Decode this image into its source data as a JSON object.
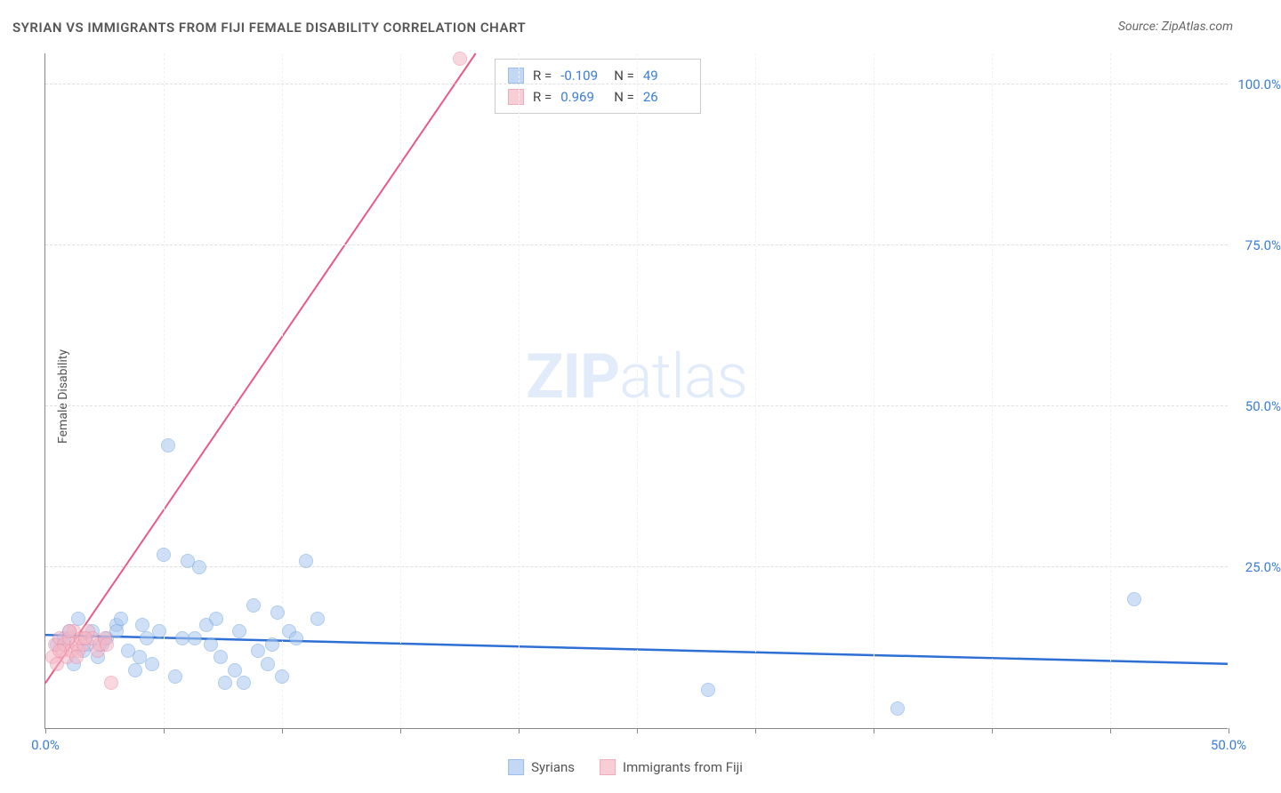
{
  "title": "SYRIAN VS IMMIGRANTS FROM FIJI FEMALE DISABILITY CORRELATION CHART",
  "source_label": "Source: ZipAtlas.com",
  "watermark": {
    "bold": "ZIP",
    "light": "atlas"
  },
  "ylabel": "Female Disability",
  "chart": {
    "type": "scatter",
    "background_color": "#ffffff",
    "grid_color": "#e0e0e0",
    "axis_color": "#888888",
    "label_color": "#3b7dd8",
    "text_color": "#555555",
    "xlim": [
      0,
      50
    ],
    "ylim": [
      0,
      105
    ],
    "xticks": [
      0,
      5,
      10,
      15,
      20,
      25,
      30,
      35,
      40,
      45,
      50
    ],
    "xtick_labels": {
      "0": "0.0%",
      "50": "50.0%"
    },
    "yticks": [
      25,
      50,
      75,
      100
    ],
    "ytick_labels": [
      "25.0%",
      "50.0%",
      "75.0%",
      "100.0%"
    ],
    "marker_radius": 8,
    "marker_stroke_width": 1.5,
    "series": [
      {
        "name": "Syrians",
        "fill": "#a9c8f0",
        "stroke": "#6fa3e0",
        "fill_opacity": 0.55,
        "trend": {
          "x1": 0,
          "y1": 14.5,
          "x2": 50,
          "y2": 10.0,
          "color": "#2d6fd4",
          "width": 2.5
        },
        "r": "-0.109",
        "n": "49",
        "points": [
          [
            0.5,
            13
          ],
          [
            0.8,
            14
          ],
          [
            1.0,
            15
          ],
          [
            1.2,
            10
          ],
          [
            1.4,
            17
          ],
          [
            1.8,
            13
          ],
          [
            2.0,
            15
          ],
          [
            2.2,
            11
          ],
          [
            2.6,
            14
          ],
          [
            3.0,
            16
          ],
          [
            3.2,
            17
          ],
          [
            3.5,
            12
          ],
          [
            3.8,
            9
          ],
          [
            4.1,
            16
          ],
          [
            4.3,
            14
          ],
          [
            4.5,
            10
          ],
          [
            4.8,
            15
          ],
          [
            5.0,
            27
          ],
          [
            5.2,
            44
          ],
          [
            5.5,
            8
          ],
          [
            6.0,
            26
          ],
          [
            6.3,
            14
          ],
          [
            6.5,
            25
          ],
          [
            7.0,
            13
          ],
          [
            7.4,
            11
          ],
          [
            7.6,
            7
          ],
          [
            8.0,
            9
          ],
          [
            8.2,
            15
          ],
          [
            8.4,
            7
          ],
          [
            8.8,
            19
          ],
          [
            9.0,
            12
          ],
          [
            9.4,
            10
          ],
          [
            9.8,
            18
          ],
          [
            10.0,
            8
          ],
          [
            10.3,
            15
          ],
          [
            10.6,
            14
          ],
          [
            11.0,
            26
          ],
          [
            11.5,
            17
          ],
          [
            28.0,
            6
          ],
          [
            36.0,
            3
          ],
          [
            46.0,
            20
          ],
          [
            5.8,
            14
          ],
          [
            6.8,
            16
          ],
          [
            3.0,
            15
          ],
          [
            2.4,
            13
          ],
          [
            1.6,
            12
          ],
          [
            4.0,
            11
          ],
          [
            7.2,
            17
          ],
          [
            9.6,
            13
          ]
        ]
      },
      {
        "name": "Immigrants from Fiji",
        "fill": "#f5b8c6",
        "stroke": "#e88aa3",
        "fill_opacity": 0.55,
        "trend": {
          "x1": 0,
          "y1": 7,
          "x2": 18.2,
          "y2": 105,
          "color": "#e85a85",
          "width": 2
        },
        "r": "0.969",
        "n": "26",
        "points": [
          [
            0.3,
            11
          ],
          [
            0.4,
            13
          ],
          [
            0.5,
            10
          ],
          [
            0.6,
            14
          ],
          [
            0.7,
            12
          ],
          [
            0.8,
            13
          ],
          [
            0.9,
            11
          ],
          [
            1.0,
            14
          ],
          [
            1.1,
            12
          ],
          [
            1.2,
            15
          ],
          [
            1.3,
            13
          ],
          [
            1.4,
            12
          ],
          [
            1.5,
            14
          ],
          [
            1.6,
            13
          ],
          [
            1.8,
            15
          ],
          [
            2.0,
            14
          ],
          [
            2.2,
            12
          ],
          [
            2.3,
            13
          ],
          [
            2.5,
            14
          ],
          [
            2.6,
            13
          ],
          [
            1.0,
            15
          ],
          [
            1.3,
            11
          ],
          [
            0.6,
            12
          ],
          [
            1.7,
            14
          ],
          [
            2.8,
            7
          ],
          [
            17.5,
            104
          ]
        ]
      }
    ]
  },
  "bottom_legend": [
    {
      "label": "Syrians",
      "fill": "#a9c8f0",
      "stroke": "#6fa3e0"
    },
    {
      "label": "Immigrants from Fiji",
      "fill": "#f5b8c6",
      "stroke": "#e88aa3"
    }
  ]
}
